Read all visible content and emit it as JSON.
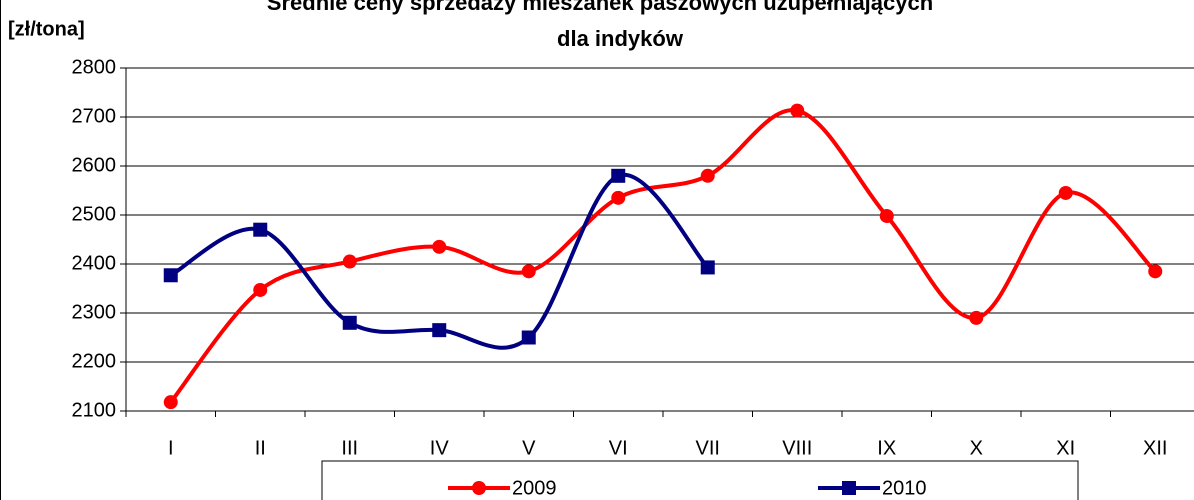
{
  "chart_data": {
    "type": "line",
    "title": [
      "Średnie ceny sprzedaży mieszanek paszowych uzupełniających",
      "dla indyków"
    ],
    "y_label": "[zł/tona]",
    "categories": [
      "I",
      "II",
      "III",
      "IV",
      "V",
      "VI",
      "VII",
      "VIII",
      "IX",
      "X",
      "XI",
      "XII"
    ],
    "series": [
      {
        "name": "2009",
        "color": "#ff0000",
        "marker": "circle",
        "values": [
          2118,
          2347,
          2405,
          2435,
          2385,
          2535,
          2580,
          2713,
          2498,
          2290,
          2545,
          2385
        ]
      },
      {
        "name": "2010",
        "color": "#000080",
        "marker": "square",
        "values": [
          2377,
          2470,
          2280,
          2265,
          2250,
          2580,
          2393,
          null,
          null,
          null,
          null,
          null
        ]
      }
    ],
    "ylim": [
      2100,
      2800
    ],
    "yticks": [
      2100,
      2200,
      2300,
      2400,
      2500,
      2600,
      2700,
      2800
    ],
    "grid": true,
    "legend": "bottom"
  }
}
